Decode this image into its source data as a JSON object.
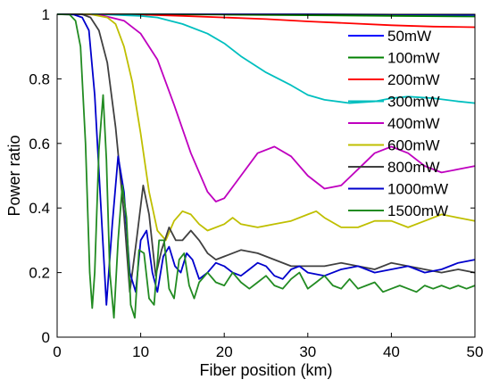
{
  "chart_data": {
    "type": "line",
    "xlabel": "Fiber position (km)",
    "ylabel": "Power ratio",
    "xlim": [
      0,
      50
    ],
    "ylim": [
      0,
      1
    ],
    "xticks": [
      "0",
      "10",
      "20",
      "30",
      "40",
      "50"
    ],
    "yticks": [
      "0",
      "0.2",
      "0.4",
      "0.6",
      "0.8",
      "1"
    ],
    "grid": false,
    "legend_position": "top-right",
    "series": [
      {
        "name": "50mW",
        "color": "#0000ff",
        "x": [
          0,
          10,
          20,
          30,
          40,
          50
        ],
        "y": [
          1.0,
          1.0,
          1.0,
          1.0,
          0.999,
          0.998
        ]
      },
      {
        "name": "100mW",
        "color": "#008000",
        "x": [
          0,
          10,
          20,
          30,
          40,
          50
        ],
        "y": [
          1.0,
          1.0,
          0.999,
          0.997,
          0.995,
          0.993
        ]
      },
      {
        "name": "200mW",
        "color": "#ff0000",
        "x": [
          0,
          5,
          10,
          15,
          20,
          25,
          30,
          35,
          40,
          45,
          50
        ],
        "y": [
          1.0,
          1.0,
          0.999,
          0.995,
          0.99,
          0.985,
          0.978,
          0.972,
          0.966,
          0.962,
          0.96
        ]
      },
      {
        "name": "300mW",
        "color": "#00bfbf",
        "x": [
          0,
          5,
          10,
          12,
          15,
          18,
          20,
          22,
          25,
          28,
          30,
          32,
          35,
          38,
          40,
          42,
          45,
          48,
          50
        ],
        "y": [
          1.0,
          1.0,
          0.995,
          0.99,
          0.97,
          0.94,
          0.91,
          0.87,
          0.82,
          0.78,
          0.75,
          0.735,
          0.725,
          0.73,
          0.74,
          0.745,
          0.74,
          0.73,
          0.725
        ]
      },
      {
        "name": "400mW",
        "color": "#bf00bf",
        "x": [
          0,
          5,
          8,
          10,
          12,
          14,
          16,
          18,
          19,
          20,
          22,
          24,
          26,
          28,
          30,
          32,
          34,
          36,
          38,
          40,
          42,
          44,
          46,
          48,
          50
        ],
        "y": [
          1.0,
          0.999,
          0.98,
          0.94,
          0.86,
          0.72,
          0.57,
          0.45,
          0.42,
          0.43,
          0.5,
          0.57,
          0.59,
          0.56,
          0.5,
          0.46,
          0.47,
          0.52,
          0.57,
          0.59,
          0.57,
          0.53,
          0.51,
          0.52,
          0.53
        ]
      },
      {
        "name": "600mW",
        "color": "#bfbf00",
        "x": [
          0,
          4,
          6,
          7,
          8,
          9,
          10,
          11,
          12,
          13,
          14,
          15,
          16,
          17,
          18,
          20,
          21,
          22,
          24,
          26,
          28,
          30,
          31,
          32,
          34,
          36,
          38,
          40,
          42,
          44,
          46,
          48,
          50
        ],
        "y": [
          1.0,
          1.0,
          0.99,
          0.97,
          0.9,
          0.79,
          0.63,
          0.45,
          0.33,
          0.3,
          0.36,
          0.39,
          0.38,
          0.35,
          0.33,
          0.35,
          0.37,
          0.35,
          0.34,
          0.35,
          0.36,
          0.38,
          0.39,
          0.37,
          0.34,
          0.34,
          0.36,
          0.36,
          0.34,
          0.36,
          0.38,
          0.37,
          0.36
        ]
      },
      {
        "name": "800mW",
        "color": "#404040",
        "x": [
          0,
          3,
          4,
          5,
          6,
          7,
          8,
          8.7,
          9.5,
          10.3,
          11,
          11.8,
          12.5,
          13.4,
          14.2,
          15,
          16,
          17,
          18,
          19,
          20,
          22,
          24,
          26,
          28,
          30,
          32,
          34,
          36,
          38,
          40,
          42,
          44,
          46,
          48,
          50
        ],
        "y": [
          1.0,
          1.0,
          0.99,
          0.95,
          0.85,
          0.65,
          0.38,
          0.14,
          0.3,
          0.47,
          0.38,
          0.19,
          0.27,
          0.34,
          0.3,
          0.3,
          0.33,
          0.3,
          0.26,
          0.24,
          0.25,
          0.27,
          0.26,
          0.24,
          0.22,
          0.22,
          0.22,
          0.23,
          0.22,
          0.21,
          0.23,
          0.22,
          0.21,
          0.2,
          0.21,
          0.2
        ]
      },
      {
        "name": "1000mW",
        "color": "#0000cc",
        "x": [
          0,
          2,
          3,
          3.8,
          4.5,
          5.2,
          5.9,
          6.6,
          7.3,
          8.0,
          8.7,
          9.4,
          10.0,
          10.7,
          11.4,
          12.0,
          12.7,
          13.4,
          14.1,
          14.8,
          15.5,
          16.2,
          17,
          18,
          19,
          20,
          21,
          22,
          23,
          24,
          25,
          26,
          27,
          28,
          29,
          30,
          32,
          34,
          36,
          38,
          40,
          42,
          44,
          46,
          48,
          50
        ],
        "y": [
          1.0,
          0.999,
          0.99,
          0.95,
          0.75,
          0.42,
          0.1,
          0.35,
          0.56,
          0.45,
          0.2,
          0.14,
          0.3,
          0.33,
          0.2,
          0.14,
          0.25,
          0.28,
          0.22,
          0.2,
          0.26,
          0.24,
          0.18,
          0.2,
          0.23,
          0.22,
          0.2,
          0.19,
          0.21,
          0.23,
          0.22,
          0.19,
          0.18,
          0.21,
          0.22,
          0.2,
          0.19,
          0.21,
          0.22,
          0.2,
          0.21,
          0.22,
          0.2,
          0.21,
          0.23,
          0.24
        ]
      },
      {
        "name": "1500mW",
        "color": "#228b22",
        "x": [
          0,
          1.5,
          2.2,
          2.8,
          3.4,
          3.9,
          4.2,
          4.5,
          5.0,
          5.5,
          5.9,
          6.3,
          6.8,
          7.3,
          7.8,
          8.3,
          8.8,
          9.3,
          9.8,
          10.4,
          11.0,
          11.6,
          12.2,
          12.8,
          13.4,
          14.0,
          14.6,
          15.2,
          15.8,
          16.4,
          17,
          18,
          19,
          20,
          21,
          22,
          23,
          24,
          25,
          26,
          27,
          28,
          29,
          30,
          31,
          32,
          33,
          34,
          35,
          36,
          37,
          38,
          39,
          40,
          41,
          42,
          43,
          44,
          45,
          46,
          47,
          48,
          49,
          50
        ],
        "y": [
          1.0,
          0.999,
          0.98,
          0.9,
          0.6,
          0.2,
          0.09,
          0.2,
          0.58,
          0.75,
          0.55,
          0.2,
          0.06,
          0.3,
          0.47,
          0.37,
          0.1,
          0.06,
          0.27,
          0.26,
          0.12,
          0.1,
          0.3,
          0.3,
          0.15,
          0.12,
          0.24,
          0.26,
          0.16,
          0.12,
          0.17,
          0.2,
          0.17,
          0.16,
          0.2,
          0.17,
          0.15,
          0.17,
          0.19,
          0.16,
          0.15,
          0.18,
          0.2,
          0.15,
          0.17,
          0.19,
          0.16,
          0.15,
          0.18,
          0.15,
          0.16,
          0.17,
          0.14,
          0.15,
          0.16,
          0.15,
          0.14,
          0.16,
          0.15,
          0.16,
          0.15,
          0.16,
          0.15,
          0.16
        ]
      }
    ]
  }
}
